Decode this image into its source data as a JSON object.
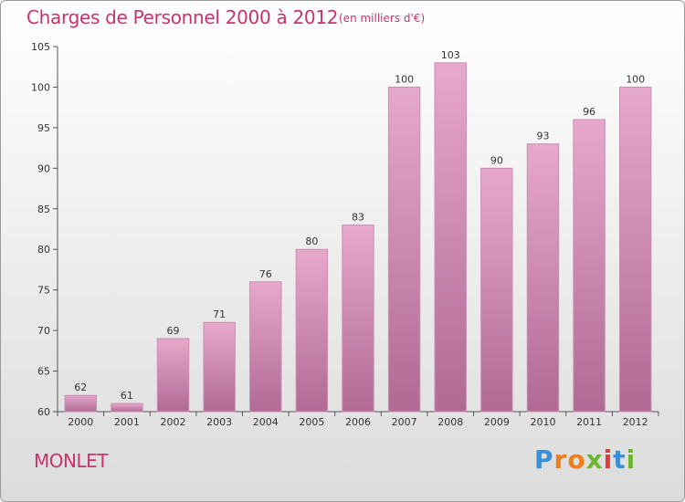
{
  "title": "Charges de Personnel 2000 à 2012",
  "subtitle": "(en milliers d'€)",
  "commune": "MONLET",
  "logo": {
    "text": "Proxiti",
    "letters": [
      {
        "ch": "P",
        "color": "#3a8fd6"
      },
      {
        "ch": "r",
        "color": "#f07f1a"
      },
      {
        "ch": "o",
        "color": "#f07f1a"
      },
      {
        "ch": "x",
        "color": "#6bb82e"
      },
      {
        "ch": "i",
        "color": "#e23a3a"
      },
      {
        "ch": "t",
        "color": "#3a8fd6"
      },
      {
        "ch": "i",
        "color": "#6bb82e"
      }
    ]
  },
  "colors": {
    "accent": "#c8336e",
    "bar_top": "#e6a8cb",
    "bar_bottom": "#b06a94"
  },
  "chart_data": {
    "type": "bar",
    "title": "Charges de Personnel 2000 à 2012",
    "subtitle": "(en milliers d'€)",
    "xlabel": "",
    "ylabel": "",
    "categories": [
      "2000",
      "2001",
      "2002",
      "2003",
      "2004",
      "2005",
      "2006",
      "2007",
      "2008",
      "2009",
      "2010",
      "2011",
      "2012"
    ],
    "values": [
      62,
      61,
      69,
      71,
      76,
      80,
      83,
      100,
      103,
      90,
      93,
      96,
      100
    ],
    "ylim": [
      60,
      105
    ],
    "yticks": [
      60,
      65,
      70,
      75,
      80,
      85,
      90,
      95,
      100,
      105
    ],
    "grid": false,
    "legend": "none"
  }
}
